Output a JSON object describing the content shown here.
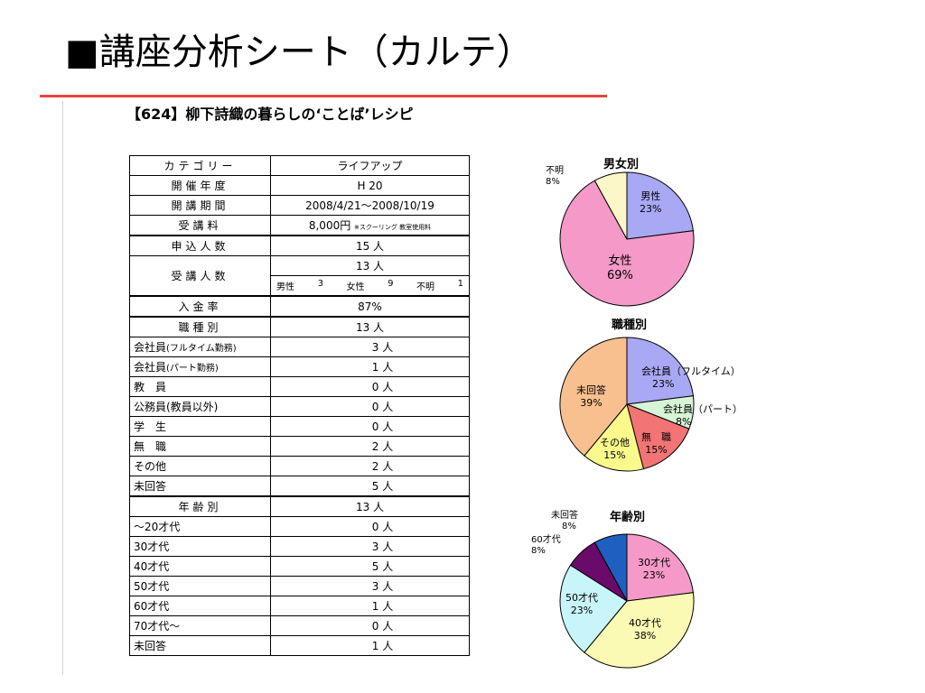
{
  "slide_title": "■講座分析シート（カルテ）",
  "doc_title": "【624】柳下詩織の暮らしの‘ことば’レシピ",
  "table": {
    "category_label": "カテゴリー",
    "category_value": "ライフアップ",
    "year_label": "開催年度",
    "year_value": "H 20",
    "period_label": "開講期間",
    "period_value": "2008/4/21～2008/10/19",
    "fee_label": "受講料",
    "fee_value": "8,000円",
    "fee_note": "※スクーリング 教室使用料",
    "applicants_label": "申込人数",
    "applicants_value": "15 人",
    "attendees_label": "受講人数",
    "attendees_value": "13 人",
    "attendees_breakdown": [
      "男性",
      "3",
      "女性",
      "9",
      "不明",
      "1"
    ],
    "payment_label": "入金率",
    "payment_value": "87%",
    "occupation_label": "職種別",
    "occupation_total": "13 人",
    "occupation_rows": [
      {
        "label": "会社員",
        "note": "(フルタイム勤務)",
        "value": "3 人"
      },
      {
        "label": "会社員",
        "note": "(パート勤務)",
        "value": "1 人"
      },
      {
        "label": "教　員",
        "note": "",
        "value": "0 人"
      },
      {
        "label": "公務員(教員以外)",
        "note": "",
        "value": "0 人"
      },
      {
        "label": "学　生",
        "note": "",
        "value": "0 人"
      },
      {
        "label": "無　職",
        "note": "",
        "value": "2 人"
      },
      {
        "label": "その他",
        "note": "",
        "value": "2 人"
      },
      {
        "label": "未回答",
        "note": "",
        "value": "5 人"
      }
    ],
    "age_label": "年齢別",
    "age_total": "13 人",
    "age_rows": [
      {
        "label": "～20才代",
        "value": "0 人"
      },
      {
        "label": "30才代",
        "value": "3 人"
      },
      {
        "label": "40才代",
        "value": "5 人"
      },
      {
        "label": "50才代",
        "value": "3 人"
      },
      {
        "label": "60才代",
        "value": "1 人"
      },
      {
        "label": "70才代～",
        "value": "0 人"
      },
      {
        "label": "未回答",
        "value": "1 人"
      }
    ]
  },
  "chart_data": [
    {
      "type": "pie",
      "title": "男女別",
      "slices": [
        {
          "label": "男性",
          "value": 23,
          "pct": "23%",
          "color": "#a9a8f5"
        },
        {
          "label": "女性",
          "value": 69,
          "pct": "69%",
          "color": "#f59ac8"
        },
        {
          "label": "不明",
          "value": 8,
          "pct": "8%",
          "color": "#fcf7c8"
        }
      ]
    },
    {
      "type": "pie",
      "title": "職種別",
      "slices": [
        {
          "label": "会社員（フルタイム）",
          "value": 23,
          "pct": "23%",
          "color": "#a9a8f5"
        },
        {
          "label": "会社員（パート）",
          "value": 8,
          "pct": "8%",
          "color": "#d6f5d6"
        },
        {
          "label": "無　職",
          "value": 15,
          "pct": "15%",
          "color": "#f27474"
        },
        {
          "label": "その他",
          "value": 15,
          "pct": "15%",
          "color": "#fafa8c"
        },
        {
          "label": "未回答",
          "value": 39,
          "pct": "39%",
          "color": "#f9c08f"
        }
      ]
    },
    {
      "type": "pie",
      "title": "年齢別",
      "slices": [
        {
          "label": "30才代",
          "value": 23,
          "pct": "23%",
          "color": "#f59ac8"
        },
        {
          "label": "40才代",
          "value": 38,
          "pct": "38%",
          "color": "#fafab4"
        },
        {
          "label": "50才代",
          "value": 23,
          "pct": "23%",
          "color": "#c8f5fa"
        },
        {
          "label": "60才代",
          "value": 8,
          "pct": "8%",
          "color": "#6a0a6a"
        },
        {
          "label": "未回答",
          "value": 8,
          "pct": "8%",
          "color": "#1f5fc0"
        }
      ]
    }
  ]
}
